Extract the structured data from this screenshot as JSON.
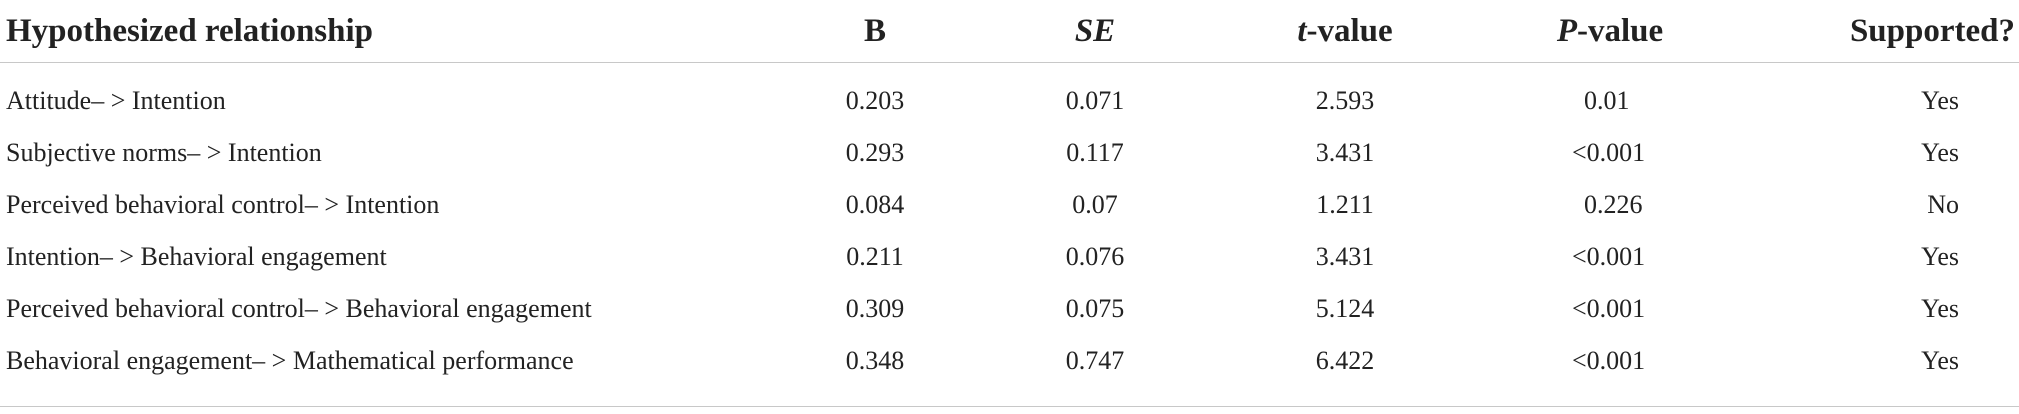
{
  "table": {
    "headers": {
      "relationship": "Hypothesized relationship",
      "b": "B",
      "se": "SE",
      "t_italic": "t",
      "t_rest": "-value",
      "p_italic": "P",
      "p_rest": "-value",
      "supported": "Supported?"
    },
    "rows": [
      {
        "relationship": "Attitude– > Intention",
        "b": "0.203",
        "se": "0.071",
        "t": "2.593",
        "p": "0.01",
        "supported": "Yes"
      },
      {
        "relationship": "Subjective norms– > Intention",
        "b": "0.293",
        "se": "0.117",
        "t": "3.431",
        "p": "<0.001",
        "supported": "Yes"
      },
      {
        "relationship": "Perceived behavioral control– > Intention",
        "b": "0.084",
        "se": "0.07",
        "t": "1.211",
        "p": "0.226",
        "supported": "No"
      },
      {
        "relationship": "Intention– > Behavioral engagement",
        "b": "0.211",
        "se": "0.076",
        "t": "3.431",
        "p": "<0.001",
        "supported": "Yes"
      },
      {
        "relationship": "Perceived behavioral control– > Behavioral engagement",
        "b": "0.309",
        "se": "0.075",
        "t": "5.124",
        "p": "<0.001",
        "supported": "Yes"
      },
      {
        "relationship": "Behavioral engagement– > Mathematical performance",
        "b": "0.348",
        "se": "0.747",
        "t": "6.422",
        "p": "<0.001",
        "supported": "Yes"
      }
    ]
  }
}
